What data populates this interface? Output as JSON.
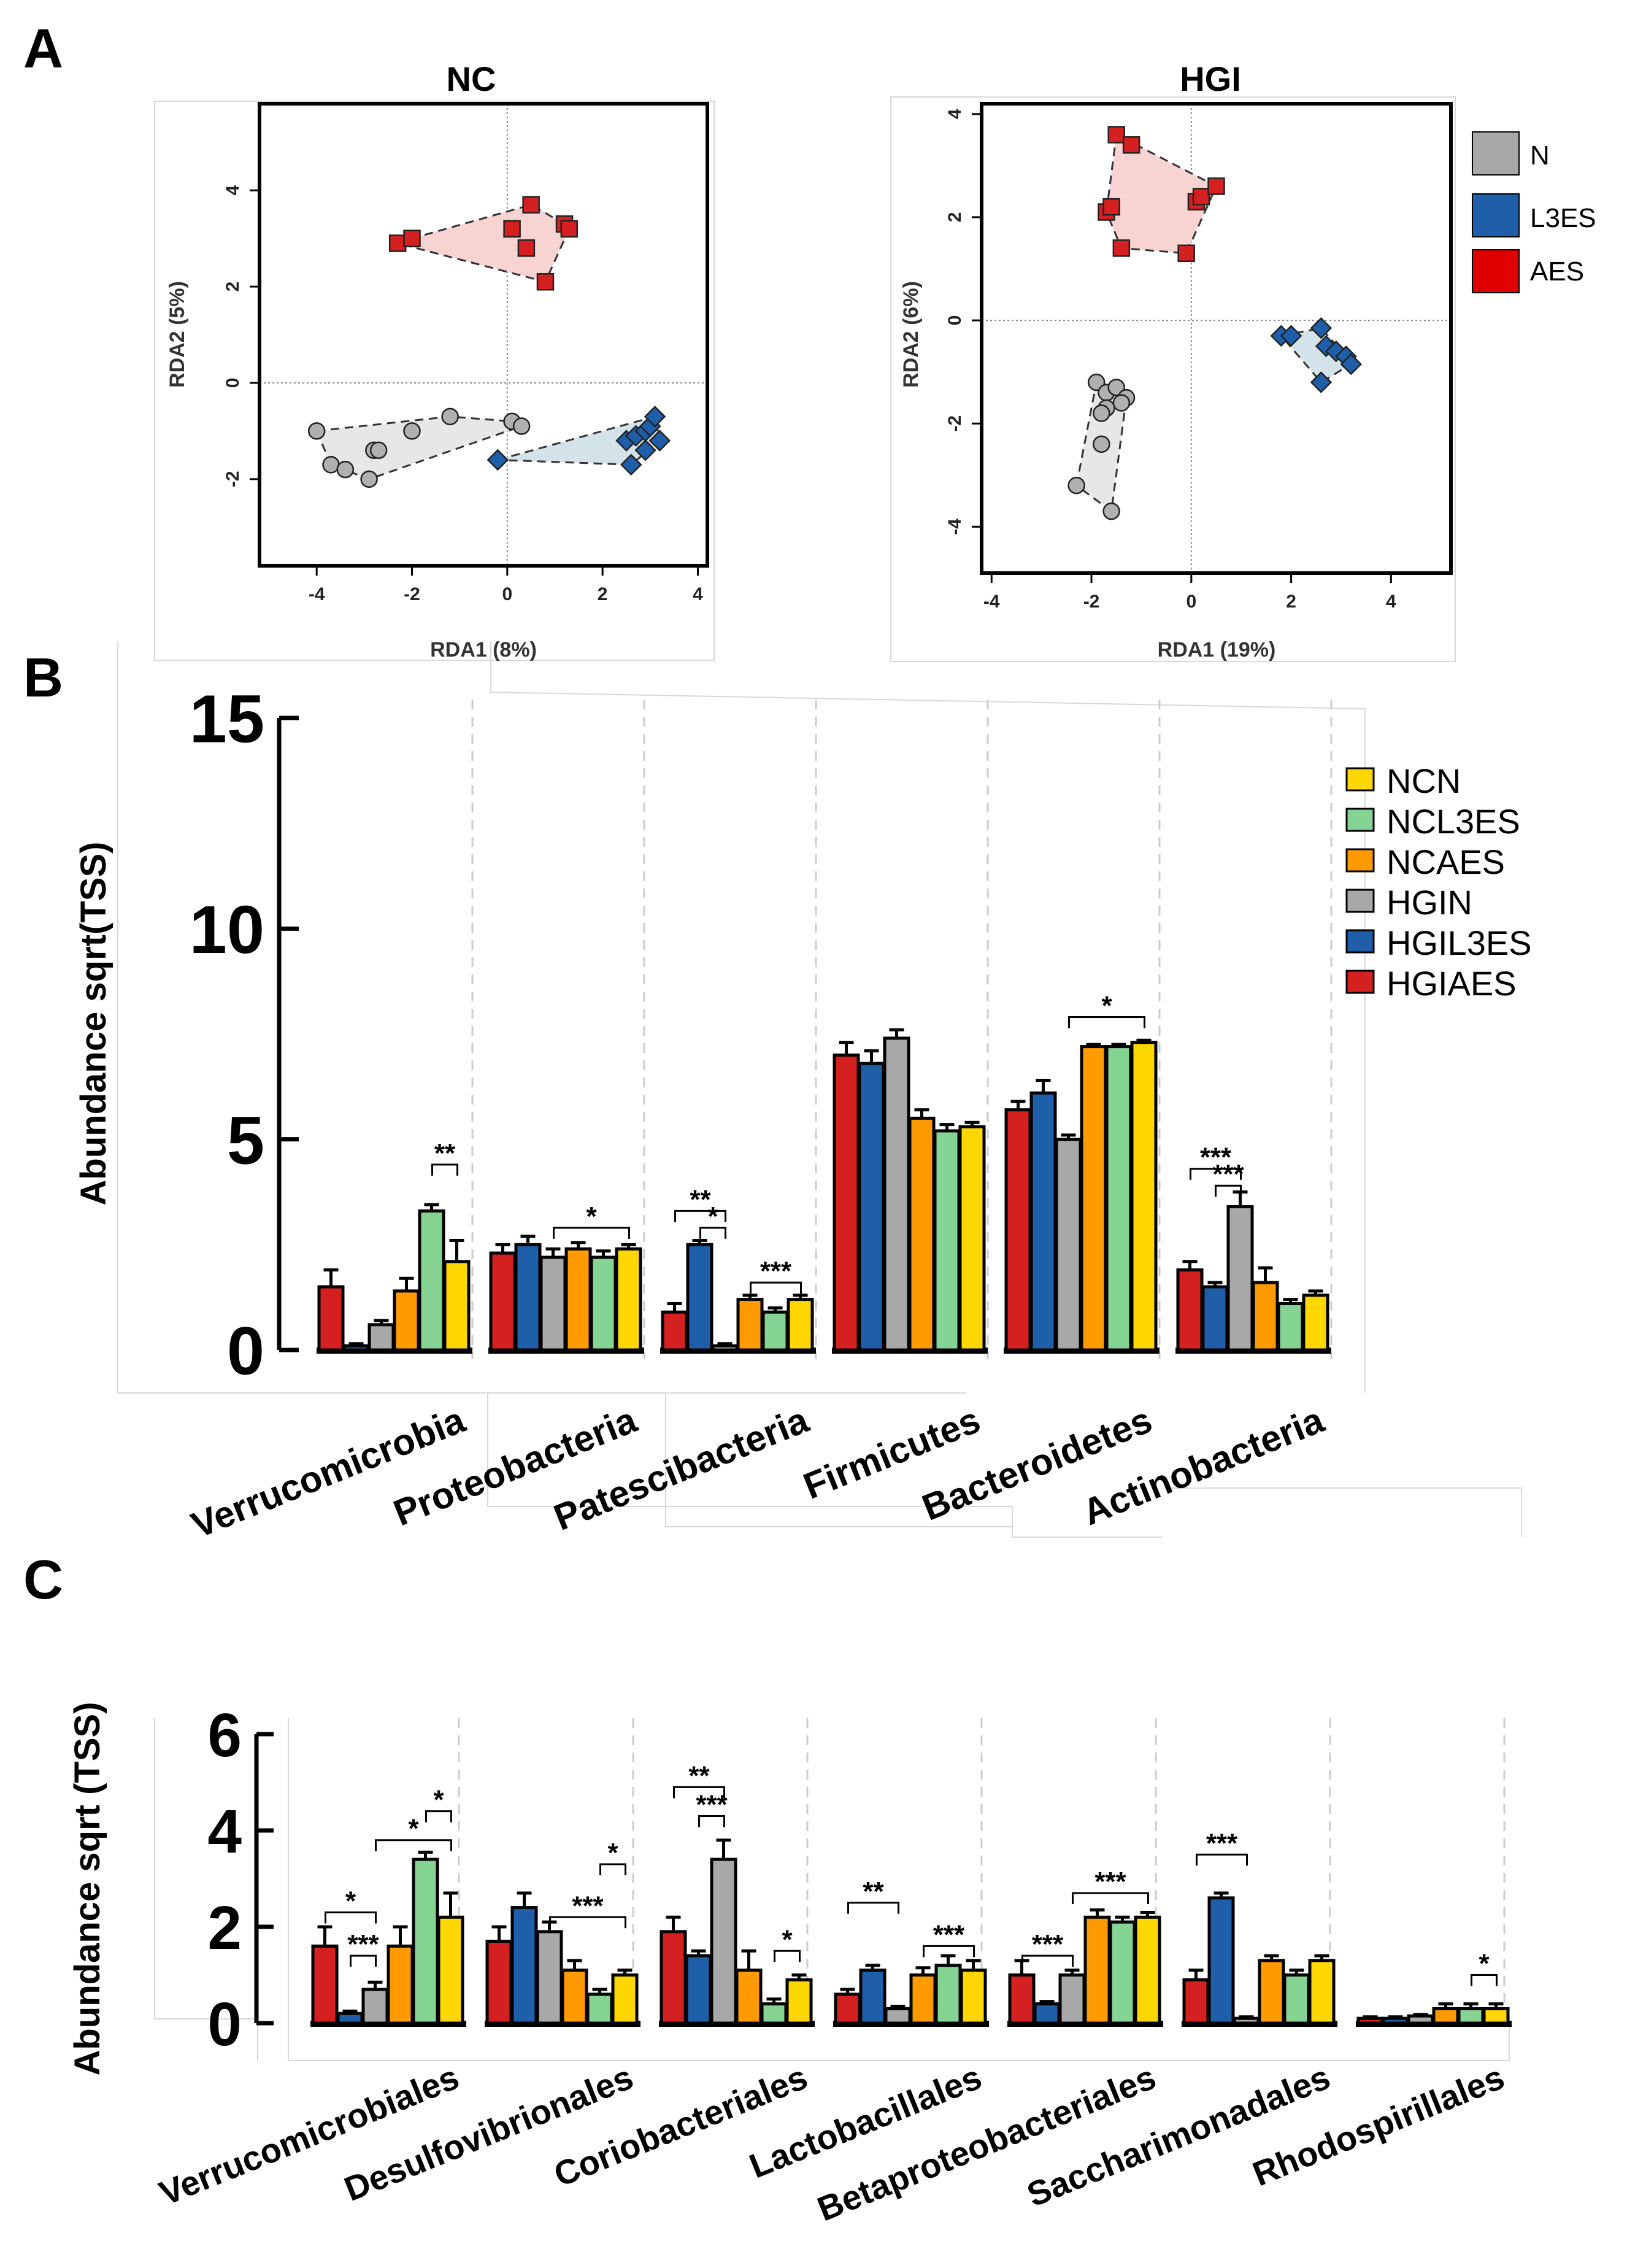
{
  "panels": {
    "A": "A",
    "B": "B",
    "C": "C"
  },
  "chart_data": [
    {
      "type": "scatter",
      "title": "NC",
      "xlabel": "RDA1 (8%)",
      "ylabel": "RDA2 (5%)",
      "xlim": [
        -5.2,
        4.2
      ],
      "ylim": [
        -3.8,
        5.8
      ],
      "xticks": [
        -4,
        -2,
        0,
        2,
        4
      ],
      "yticks": [
        -2,
        0,
        2,
        4
      ],
      "tick_labels_x": [
        "-4",
        "-2",
        "0",
        "2",
        "4"
      ],
      "tick_labels_y": [
        "-2",
        "0",
        "2",
        "4"
      ],
      "series": [
        {
          "name": "N",
          "color": "#b0b0b0",
          "fill": "#e6e8e6",
          "marker": "circle",
          "x": [
            -4.0,
            -3.7,
            -3.4,
            -2.8,
            -2.7,
            -2.0,
            -1.2,
            0.1,
            0.3,
            -2.9
          ],
          "y": [
            -1.0,
            -1.7,
            -1.8,
            -1.4,
            -1.4,
            -1.0,
            -0.7,
            -0.8,
            -0.9,
            -2.0
          ]
        },
        {
          "name": "L3ES",
          "color": "#1f5ea8",
          "fill": "#d4e2ea",
          "marker": "diamond",
          "x": [
            -0.2,
            2.5,
            2.7,
            2.9,
            3.0,
            3.1,
            3.2,
            2.6,
            2.9
          ],
          "y": [
            -1.6,
            -1.2,
            -1.1,
            -1.0,
            -0.9,
            -0.7,
            -1.2,
            -1.7,
            -1.4
          ]
        },
        {
          "name": "AES",
          "color": "#d42020",
          "fill": "#f7d4d2",
          "marker": "square",
          "x": [
            -2.3,
            -2.0,
            0.1,
            0.5,
            0.4,
            1.2,
            1.3,
            0.8
          ],
          "y": [
            2.9,
            3.0,
            3.2,
            3.7,
            2.8,
            3.3,
            3.2,
            2.1
          ]
        }
      ]
    },
    {
      "type": "scatter",
      "title": "HGI",
      "xlabel": "RDA1 (19%)",
      "ylabel": "RDA2 (6%)",
      "xlim": [
        -4.2,
        5.2
      ],
      "ylim": [
        -4.9,
        4.2
      ],
      "xticks": [
        -4,
        -2,
        0,
        2,
        4
      ],
      "yticks": [
        -4,
        -2,
        0,
        2,
        4
      ],
      "tick_labels_x": [
        "-4",
        "-2",
        "0",
        "2",
        "4"
      ],
      "tick_labels_y": [
        "-4",
        "-2",
        "0",
        "2",
        "4"
      ],
      "series": [
        {
          "name": "N",
          "color": "#b0b0b0",
          "fill": "#e6e8e6",
          "marker": "circle",
          "x": [
            -1.9,
            -1.7,
            -1.5,
            -1.3,
            -1.4,
            -1.7,
            -1.8,
            -1.8,
            -2.3,
            -1.6
          ],
          "y": [
            -1.2,
            -1.4,
            -1.3,
            -1.5,
            -1.6,
            -1.7,
            -1.8,
            -2.4,
            -3.2,
            -3.7
          ]
        },
        {
          "name": "L3ES",
          "color": "#1f5ea8",
          "fill": "#d4e2ea",
          "marker": "diamond",
          "x": [
            1.8,
            2.0,
            2.6,
            2.7,
            2.9,
            3.1,
            3.2,
            2.6
          ],
          "y": [
            -0.3,
            -0.3,
            -0.15,
            -0.5,
            -0.6,
            -0.7,
            -0.85,
            -1.2
          ]
        },
        {
          "name": "AES",
          "color": "#d42020",
          "fill": "#f7d4d2",
          "marker": "square",
          "x": [
            -1.5,
            -1.2,
            -1.7,
            -1.6,
            -1.4,
            0.1,
            0.2,
            0.5,
            -0.1
          ],
          "y": [
            3.6,
            3.4,
            2.1,
            2.2,
            1.4,
            2.3,
            2.4,
            2.6,
            1.3
          ]
        }
      ]
    },
    {
      "type": "bar",
      "ylabel": "Abundance sqrt(TSS)",
      "ylim": [
        0,
        15
      ],
      "yticks": [
        0,
        5,
        10,
        15
      ],
      "tick_labels_y": [
        "0",
        "5",
        "10",
        "15"
      ],
      "categories": [
        "Verrucomicrobia",
        "Proteobacteria",
        "Patescibacteria",
        "Firmicutes",
        "Bacteroidetes",
        "Actinobacteria"
      ],
      "series": [
        {
          "name": "HGIAES",
          "color": "#d42020",
          "values": [
            1.5,
            2.3,
            0.9,
            7.0,
            5.7,
            1.9
          ],
          "errors": [
            0.4,
            0.2,
            0.2,
            0.3,
            0.2,
            0.2
          ]
        },
        {
          "name": "HGIL3ES",
          "color": "#1f5ea8",
          "values": [
            0.1,
            2.5,
            2.5,
            6.8,
            6.1,
            1.5
          ],
          "errors": [
            0.05,
            0.2,
            0.1,
            0.3,
            0.3,
            0.1
          ]
        },
        {
          "name": "HGIN",
          "color": "#a8a8a8",
          "values": [
            0.6,
            2.2,
            0.1,
            7.4,
            5.0,
            3.4
          ],
          "errors": [
            0.1,
            0.2,
            0.05,
            0.2,
            0.1,
            0.35
          ]
        },
        {
          "name": "NCAES",
          "color": "#ff9b00",
          "values": [
            1.4,
            2.4,
            1.2,
            5.5,
            7.2,
            1.6
          ],
          "errors": [
            0.3,
            0.15,
            0.1,
            0.2,
            0.05,
            0.35
          ]
        },
        {
          "name": "NCL3ES",
          "color": "#86d493",
          "values": [
            3.3,
            2.2,
            0.9,
            5.2,
            7.2,
            1.1
          ],
          "errors": [
            0.15,
            0.15,
            0.1,
            0.15,
            0.05,
            0.1
          ]
        },
        {
          "name": "NCN",
          "color": "#ffd700",
          "values": [
            2.1,
            2.4,
            1.2,
            5.3,
            7.3,
            1.3
          ],
          "errors": [
            0.5,
            0.1,
            0.1,
            0.1,
            0.05,
            0.1
          ]
        }
      ],
      "legend_order": [
        "NCN",
        "NCL3ES",
        "NCAES",
        "HGIN",
        "HGIL3ES",
        "HGIAES"
      ],
      "significance": [
        {
          "category": 0,
          "from": 4,
          "to": 5,
          "y": 4.4,
          "label": "**"
        },
        {
          "category": 1,
          "from": 2,
          "to": 5,
          "y": 2.9,
          "label": "*"
        },
        {
          "category": 2,
          "from": 0,
          "to": 2,
          "y": 3.3,
          "label": "**"
        },
        {
          "category": 2,
          "from": 1,
          "to": 2,
          "y": 2.9,
          "label": "*"
        },
        {
          "category": 2,
          "from": 3,
          "to": 5,
          "y": 1.6,
          "label": "***"
        },
        {
          "category": 4,
          "from": 2,
          "to": 5,
          "y": 7.9,
          "label": "*"
        },
        {
          "category": 5,
          "from": 0,
          "to": 2,
          "y": 4.3,
          "label": "***"
        },
        {
          "category": 5,
          "from": 1,
          "to": 2,
          "y": 3.9,
          "label": "***"
        }
      ]
    },
    {
      "type": "bar",
      "ylabel": "Abundance sqrt (TSS)",
      "ylim": [
        0,
        6
      ],
      "yticks": [
        0,
        2,
        4,
        6
      ],
      "tick_labels_y": [
        "0",
        "2",
        "4",
        "6"
      ],
      "categories": [
        "Verrucomicrobiales",
        "Desulfovibrionales",
        "Coriobacteriales",
        "Lactobacillales",
        "Betaproteobacteriales",
        "Saccharimonadales",
        "Rhodospirillales"
      ],
      "series": [
        {
          "name": "HGIAES",
          "color": "#d42020",
          "values": [
            1.6,
            1.7,
            1.9,
            0.6,
            1.0,
            0.9,
            0.1
          ],
          "errors": [
            0.4,
            0.3,
            0.3,
            0.1,
            0.3,
            0.2,
            0.03
          ]
        },
        {
          "name": "HGIL3ES",
          "color": "#1f5ea8",
          "values": [
            0.2,
            2.4,
            1.4,
            1.1,
            0.4,
            2.6,
            0.1
          ],
          "errors": [
            0.05,
            0.3,
            0.1,
            0.1,
            0.05,
            0.1,
            0.03
          ]
        },
        {
          "name": "HGIN",
          "color": "#a8a8a8",
          "values": [
            0.7,
            1.9,
            3.4,
            0.3,
            1.0,
            0.1,
            0.15
          ],
          "errors": [
            0.15,
            0.2,
            0.4,
            0.05,
            0.1,
            0.03,
            0.03
          ]
        },
        {
          "name": "NCAES",
          "color": "#ff9b00",
          "values": [
            1.6,
            1.1,
            1.1,
            1.0,
            2.2,
            1.3,
            0.3
          ],
          "errors": [
            0.4,
            0.2,
            0.4,
            0.15,
            0.15,
            0.1,
            0.1
          ]
        },
        {
          "name": "NCL3ES",
          "color": "#86d493",
          "values": [
            3.4,
            0.6,
            0.4,
            1.2,
            2.1,
            1.0,
            0.3
          ],
          "errors": [
            0.15,
            0.1,
            0.1,
            0.2,
            0.1,
            0.1,
            0.1
          ]
        },
        {
          "name": "NCN",
          "color": "#ffd700",
          "values": [
            2.2,
            1.0,
            0.9,
            1.1,
            2.2,
            1.3,
            0.3
          ],
          "errors": [
            0.5,
            0.1,
            0.1,
            0.2,
            0.1,
            0.1,
            0.1
          ]
        }
      ],
      "significance": [
        {
          "category": 0,
          "from": 0,
          "to": 2,
          "y": 2.3,
          "label": "*"
        },
        {
          "category": 0,
          "from": 1,
          "to": 2,
          "y": 1.4,
          "label": "***"
        },
        {
          "category": 0,
          "from": 2,
          "to": 5,
          "y": 3.8,
          "label": "*"
        },
        {
          "category": 0,
          "from": 4,
          "to": 5,
          "y": 4.4,
          "label": "*"
        },
        {
          "category": 1,
          "from": 2,
          "to": 5,
          "y": 2.2,
          "label": "***"
        },
        {
          "category": 1,
          "from": 4,
          "to": 5,
          "y": 3.3,
          "label": "*"
        },
        {
          "category": 2,
          "from": 0,
          "to": 2,
          "y": 4.9,
          "label": "**"
        },
        {
          "category": 2,
          "from": 1,
          "to": 2,
          "y": 4.3,
          "label": "***"
        },
        {
          "category": 2,
          "from": 4,
          "to": 5,
          "y": 1.5,
          "label": "*"
        },
        {
          "category": 3,
          "from": 0,
          "to": 2,
          "y": 2.5,
          "label": "**"
        },
        {
          "category": 3,
          "from": 3,
          "to": 5,
          "y": 1.6,
          "label": "***"
        },
        {
          "category": 4,
          "from": 0,
          "to": 2,
          "y": 1.4,
          "label": "***"
        },
        {
          "category": 4,
          "from": 2,
          "to": 5,
          "y": 2.7,
          "label": "***"
        },
        {
          "category": 5,
          "from": 0,
          "to": 2,
          "y": 3.5,
          "label": "***"
        },
        {
          "category": 6,
          "from": 4,
          "to": 5,
          "y": 1.0,
          "label": "*"
        }
      ]
    }
  ],
  "legendA": [
    {
      "name": "N",
      "color": "#a8a8a8"
    },
    {
      "name": "L3ES",
      "color": "#1f5ea8"
    },
    {
      "name": "AES",
      "color": "#e00000"
    }
  ]
}
